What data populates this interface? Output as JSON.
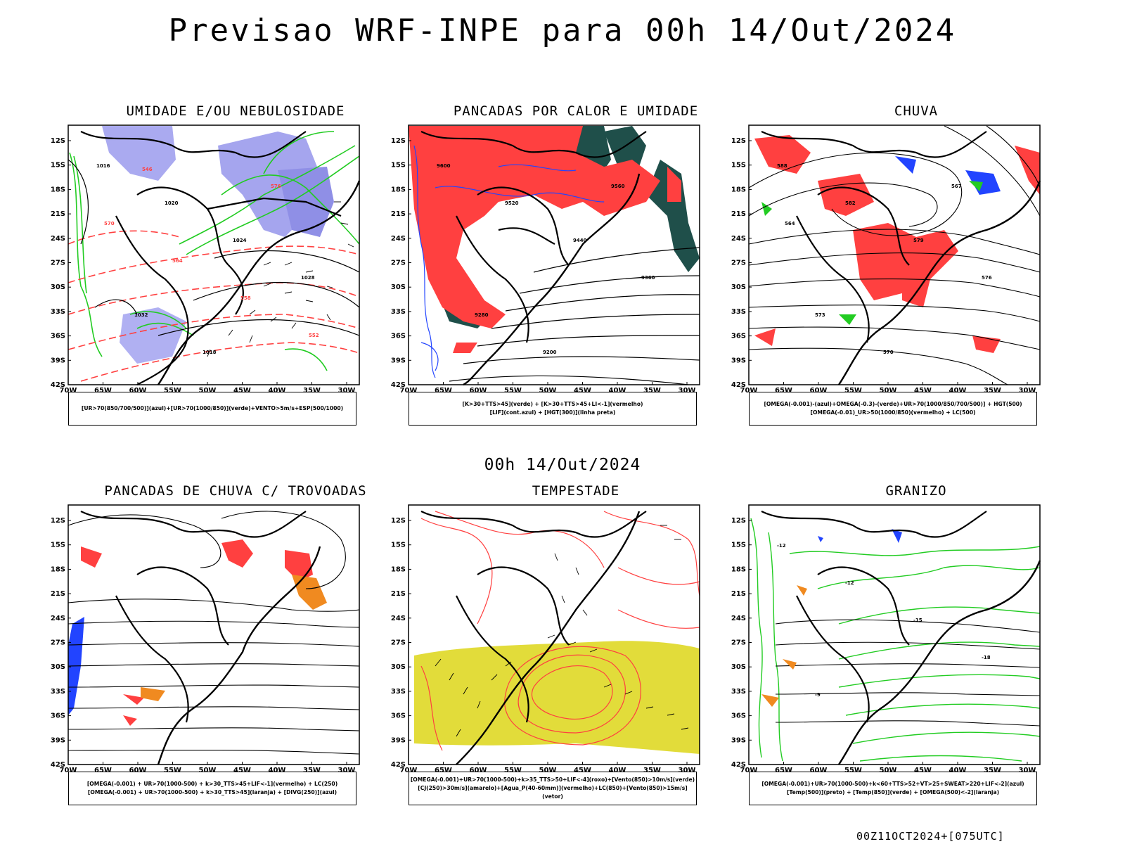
{
  "title": "Previsao WRF-INPE  para 00h 14/Out/2024",
  "mid_title": "00h 14/Out/2024",
  "footer": "00Z11OCT2024+[075UTC]",
  "axes": {
    "lat_labels": [
      "12S",
      "15S",
      "18S",
      "21S",
      "24S",
      "27S",
      "30S",
      "33S",
      "36S",
      "39S",
      "42S"
    ],
    "lon_labels": [
      "70W",
      "65W",
      "60W",
      "55W",
      "50W",
      "45W",
      "40W",
      "35W",
      "30W"
    ]
  },
  "colors": {
    "red": "#ff4040",
    "green": "#22cc22",
    "blue": "#2244ff",
    "lavender": "#9999ee",
    "darkteal": "#1f4f4a",
    "yellow": "#e2dc3a",
    "orange": "#f08a20",
    "black": "#000000"
  },
  "panels": [
    {
      "title": "UMIDADE E/OU NEBULOSIDADE",
      "legend": [
        "[UR>70(850/700/500)](azul)+[UR>70(1000/850)](verde)+VENTO>5m/s+ESP(500/1000)"
      ],
      "contour_labels": [
        "1016",
        "1020",
        "1024",
        "1028",
        "1032",
        "1018",
        "576",
        "570",
        "564",
        "558",
        "552",
        "546"
      ]
    },
    {
      "title": "PANCADAS POR CALOR E UMIDADE",
      "legend": [
        "[K>30+TTS>45](verde) + [K>30+TTS>45+LI<-1](vermelho)",
        "[LIF](cont.azul) + [HGT(300)](linha preta)"
      ],
      "contour_labels": [
        "9600",
        "9520",
        "9440",
        "9360",
        "9280",
        "9200",
        "9560"
      ]
    },
    {
      "title": "CHUVA",
      "legend": [
        "[OMEGA(-0.001)-(azul)+OMEGA(-0.3)-(verde)+UR>70(1000/850/700/500)] + HGT(500)",
        "[OMEGA(-0.01)_UR>50(1000/850)(vermelho) + LC(500)"
      ],
      "contour_labels": [
        "588",
        "582",
        "579",
        "576",
        "573",
        "570",
        "567",
        "564"
      ]
    },
    {
      "title": "PANCADAS DE CHUVA C/ TROVOADAS",
      "legend": [
        "[OMEGA(-0.001) + UR>70(1000-500) + k>30_TTS>45+LIF<-1](vermelho) + LC(250)",
        "[OMEGA(-0.001) + UR>70(1000-500) + k>30_TTS>45](laranja) + [DIVG(250)](azul)"
      ],
      "contour_labels": []
    },
    {
      "title": "TEMPESTADE",
      "legend": [
        "[OMEGA(-0.001)+UR>70(1000-500)+k>35_TTS>50+LIF<-4](roxo)+[Vento(850)>10m/s](verde)",
        "[CJ(250)>30m/s](amarelo)+[Agua_P(40-60mm)](vermelho)+LC(850)+[Vento(850)>15m/s](vetor)"
      ],
      "contour_labels": []
    },
    {
      "title": "GRANIZO",
      "legend": [
        "[OMEGA(-0.001)+UR>70(1000-500)+k<60+TTS>52+VT>25+SWEAT>220+LIF<-2](azul)",
        "[Temp(500)](preto) + [Temp(850)](verde) + [OMEGA(500)<-2](laranja)"
      ],
      "contour_labels": [
        "-12",
        "-12",
        "-15",
        "-18",
        "-9"
      ]
    }
  ]
}
